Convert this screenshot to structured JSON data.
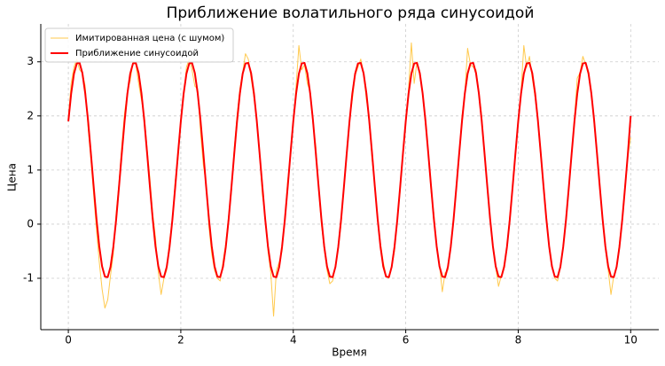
{
  "chart_data": {
    "type": "line",
    "title": "Приближение волатильного ряда синусоидой",
    "xlabel": "Время",
    "ylabel": "Цена",
    "xlim": [
      -0.49,
      10.5
    ],
    "ylim": [
      -1.95,
      3.7
    ],
    "xticks": [
      0,
      2,
      4,
      6,
      8,
      10
    ],
    "yticks": [
      -1,
      0,
      1,
      2,
      3
    ],
    "grid": true,
    "legend": "upper left",
    "x": [
      0,
      0.05,
      0.1,
      0.15,
      0.2,
      0.25,
      0.3,
      0.35,
      0.4,
      0.45,
      0.5,
      0.55,
      0.6,
      0.65,
      0.7,
      0.75,
      0.8,
      0.85,
      0.9,
      0.95,
      1,
      1.05,
      1.1,
      1.15,
      1.2,
      1.25,
      1.3,
      1.35,
      1.4,
      1.45,
      1.5,
      1.55,
      1.6,
      1.65,
      1.7,
      1.75,
      1.8,
      1.85,
      1.9,
      1.95,
      2,
      2.05,
      2.1,
      2.15,
      2.2,
      2.25,
      2.3,
      2.35,
      2.4,
      2.45,
      2.5,
      2.55,
      2.6,
      2.65,
      2.7,
      2.75,
      2.8,
      2.85,
      2.9,
      2.95,
      3,
      3.05,
      3.1,
      3.15,
      3.2,
      3.25,
      3.3,
      3.35,
      3.4,
      3.45,
      3.5,
      3.55,
      3.6,
      3.65,
      3.7,
      3.75,
      3.8,
      3.85,
      3.9,
      3.95,
      4,
      4.05,
      4.1,
      4.15,
      4.2,
      4.25,
      4.3,
      4.35,
      4.4,
      4.45,
      4.5,
      4.55,
      4.6,
      4.65,
      4.7,
      4.75,
      4.8,
      4.85,
      4.9,
      4.95,
      5,
      5.05,
      5.1,
      5.15,
      5.2,
      5.25,
      5.3,
      5.35,
      5.4,
      5.45,
      5.5,
      5.55,
      5.6,
      5.65,
      5.7,
      5.75,
      5.8,
      5.85,
      5.9,
      5.95,
      6,
      6.05,
      6.1,
      6.15,
      6.2,
      6.25,
      6.3,
      6.35,
      6.4,
      6.45,
      6.5,
      6.55,
      6.6,
      6.65,
      6.7,
      6.75,
      6.8,
      6.85,
      6.9,
      6.95,
      7,
      7.05,
      7.1,
      7.15,
      7.2,
      7.25,
      7.3,
      7.35,
      7.4,
      7.45,
      7.5,
      7.55,
      7.6,
      7.65,
      7.7,
      7.75,
      7.8,
      7.85,
      7.9,
      7.95,
      8,
      8.05,
      8.1,
      8.15,
      8.2,
      8.25,
      8.3,
      8.35,
      8.4,
      8.45,
      8.5,
      8.55,
      8.6,
      8.65,
      8.7,
      8.75,
      8.8,
      8.85,
      8.9,
      8.95,
      9,
      9.05,
      9.1,
      9.15,
      9.2,
      9.25,
      9.3,
      9.35,
      9.4,
      9.45,
      9.5,
      9.55,
      9.6,
      9.65,
      9.7,
      9.75,
      9.8,
      9.85,
      9.9,
      9.95,
      10
    ],
    "series": [
      {
        "name": "Имитированная цена (с шумом)",
        "color": "#ffc94d",
        "width": 1,
        "values": [
          1.95,
          2.6,
          2.9,
          3.05,
          2.85,
          2.8,
          2.55,
          1.8,
          1.2,
          0.55,
          -0.1,
          -0.7,
          -1.2,
          -1.55,
          -1.4,
          -0.95,
          -0.55,
          0.2,
          0.75,
          1.45,
          2.05,
          2.45,
          2.65,
          3.0,
          2.95,
          2.6,
          2.3,
          2.0,
          1.4,
          0.85,
          0.2,
          -0.25,
          -0.9,
          -1.3,
          -1.0,
          -0.85,
          -0.3,
          0.05,
          0.8,
          1.2,
          1.85,
          2.35,
          2.9,
          3.05,
          2.85,
          2.55,
          2.5,
          1.7,
          1.1,
          0.75,
          -0.05,
          -0.55,
          -0.85,
          -1.0,
          -1.05,
          -0.7,
          -0.35,
          0.15,
          0.6,
          1.4,
          2.0,
          2.5,
          2.8,
          3.15,
          3.05,
          2.7,
          2.35,
          1.95,
          1.3,
          0.55,
          0.15,
          -0.5,
          -0.9,
          -1.7,
          -0.85,
          -0.7,
          -0.5,
          0.1,
          0.8,
          1.25,
          1.85,
          2.55,
          3.3,
          2.85,
          2.95,
          2.6,
          2.45,
          1.85,
          1.45,
          0.65,
          0.0,
          -0.45,
          -0.85,
          -1.1,
          -1.05,
          -0.75,
          -0.45,
          0.0,
          0.7,
          1.35,
          1.95,
          2.3,
          2.75,
          2.9,
          3.05,
          2.8,
          2.3,
          2.0,
          1.2,
          0.75,
          0.1,
          -0.35,
          -0.7,
          -0.95,
          -1.0,
          -0.8,
          -0.5,
          0.1,
          0.6,
          1.3,
          1.9,
          2.5,
          3.35,
          2.6,
          3.0,
          2.75,
          2.4,
          1.85,
          1.35,
          0.6,
          0.2,
          -0.45,
          -0.75,
          -1.25,
          -0.9,
          -0.85,
          -0.4,
          0.05,
          0.7,
          1.25,
          2.0,
          2.4,
          3.25,
          2.95,
          2.9,
          2.85,
          2.45,
          2.0,
          1.3,
          0.7,
          0.05,
          -0.4,
          -0.8,
          -1.15,
          -0.95,
          -0.75,
          -0.45,
          0.15,
          0.65,
          1.35,
          1.85,
          2.45,
          3.3,
          2.9,
          3.1,
          2.7,
          2.35,
          1.9,
          1.25,
          0.75,
          0.1,
          -0.4,
          -0.75,
          -1.0,
          -1.05,
          -0.8,
          -0.4,
          0.05,
          0.7,
          1.3,
          1.95,
          2.7,
          2.8,
          3.1,
          2.95,
          2.75,
          2.45,
          1.85,
          1.3,
          0.65,
          0.1,
          -0.45,
          -0.85,
          -1.3,
          -0.95,
          -0.8,
          -0.35,
          0.1,
          0.75,
          1.25,
          1.6
        ]
      },
      {
        "name": "Приближение синусоидой",
        "color": "#ff0000",
        "width": 2,
        "values": [
          1.9,
          2.41,
          2.78,
          2.97,
          2.98,
          2.79,
          2.42,
          1.92,
          1.32,
          0.7,
          0.1,
          -0.41,
          -0.78,
          -0.97,
          -0.98,
          -0.79,
          -0.42,
          0.08,
          0.68,
          1.3,
          1.9,
          2.41,
          2.78,
          2.97,
          2.98,
          2.79,
          2.42,
          1.92,
          1.32,
          0.7,
          0.1,
          -0.41,
          -0.78,
          -0.97,
          -0.98,
          -0.79,
          -0.42,
          0.08,
          0.68,
          1.3,
          1.9,
          2.41,
          2.78,
          2.97,
          2.98,
          2.79,
          2.42,
          1.92,
          1.32,
          0.7,
          0.1,
          -0.41,
          -0.78,
          -0.97,
          -0.98,
          -0.79,
          -0.42,
          0.08,
          0.68,
          1.3,
          1.9,
          2.41,
          2.78,
          2.97,
          2.98,
          2.79,
          2.42,
          1.92,
          1.32,
          0.7,
          0.1,
          -0.41,
          -0.78,
          -0.97,
          -0.98,
          -0.79,
          -0.42,
          0.08,
          0.68,
          1.3,
          1.9,
          2.41,
          2.78,
          2.97,
          2.98,
          2.79,
          2.42,
          1.92,
          1.32,
          0.7,
          0.1,
          -0.41,
          -0.78,
          -0.97,
          -0.98,
          -0.79,
          -0.42,
          0.08,
          0.68,
          1.3,
          1.9,
          2.41,
          2.78,
          2.97,
          2.98,
          2.79,
          2.42,
          1.92,
          1.32,
          0.7,
          0.1,
          -0.41,
          -0.78,
          -0.97,
          -0.98,
          -0.79,
          -0.42,
          0.08,
          0.68,
          1.3,
          1.9,
          2.41,
          2.78,
          2.97,
          2.98,
          2.79,
          2.42,
          1.92,
          1.32,
          0.7,
          0.1,
          -0.41,
          -0.78,
          -0.97,
          -0.98,
          -0.79,
          -0.42,
          0.08,
          0.68,
          1.3,
          1.9,
          2.41,
          2.78,
          2.97,
          2.98,
          2.79,
          2.42,
          1.92,
          1.32,
          0.7,
          0.1,
          -0.41,
          -0.78,
          -0.97,
          -0.98,
          -0.79,
          -0.42,
          0.08,
          0.68,
          1.3,
          1.9,
          2.41,
          2.78,
          2.97,
          2.98,
          2.79,
          2.42,
          1.92,
          1.32,
          0.7,
          0.1,
          -0.41,
          -0.78,
          -0.97,
          -0.98,
          -0.79,
          -0.42,
          0.08,
          0.68,
          1.3,
          1.9,
          2.41,
          2.78,
          2.97,
          2.98,
          2.79,
          2.42,
          1.92,
          1.32,
          0.7,
          0.1,
          -0.41,
          -0.78,
          -0.97,
          -0.98,
          -0.79,
          -0.42,
          0.08,
          0.68,
          1.3,
          2.0
        ]
      }
    ]
  }
}
